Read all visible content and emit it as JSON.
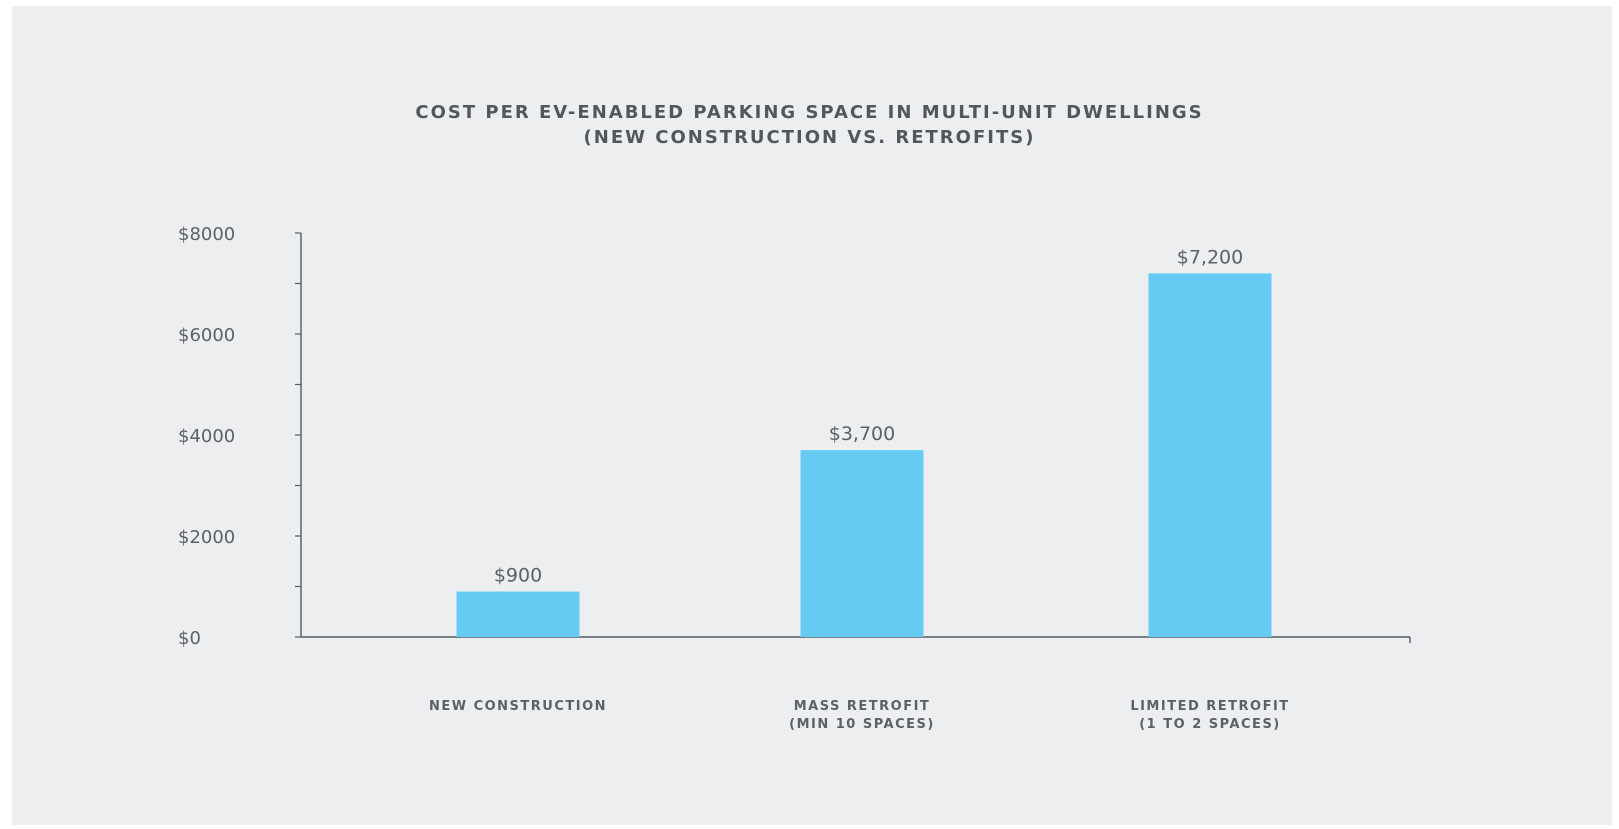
{
  "colors": {
    "bar": "#66cbf2",
    "axis": "#555a60",
    "text": "#5d6166",
    "panel": "#edeef0"
  },
  "chart_data": {
    "type": "bar",
    "title_lines": [
      "COST PER EV-ENABLED PARKING SPACE IN MULTI-UNIT DWELLINGS",
      "(NEW CONSTRUCTION VS. RETROFITS)"
    ],
    "categories": [
      [
        "NEW CONSTRUCTION"
      ],
      [
        "MASS RETROFIT",
        "(MIN 10 SPACES)"
      ],
      [
        "LIMITED RETROFIT",
        "(1 TO 2 SPACES)"
      ]
    ],
    "values": [
      900,
      3700,
      7200
    ],
    "data_labels": [
      "$900",
      "$3,700",
      "$7,200"
    ],
    "ylim": [
      0,
      8000
    ],
    "yticks": [
      0,
      2000,
      4000,
      6000,
      8000
    ],
    "ytick_labels": [
      "$0",
      "$2000",
      "$4000",
      "$6000",
      "$8000"
    ],
    "minor_tick_step": 1000,
    "xlabel": "",
    "ylabel": "",
    "grid": false,
    "legend": "none"
  }
}
